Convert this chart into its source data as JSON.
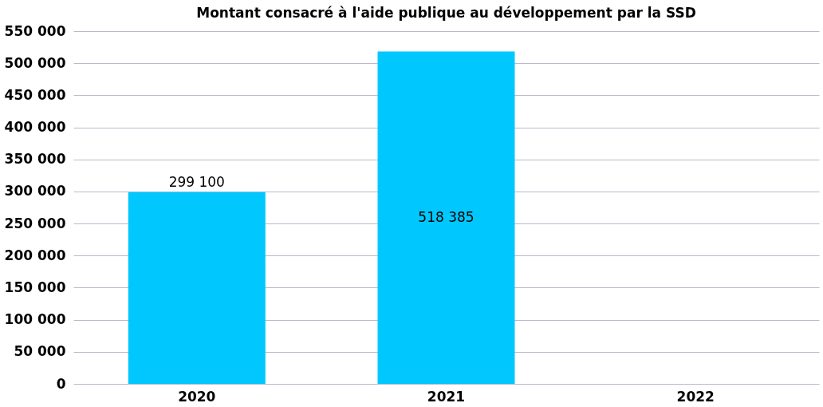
{
  "chart_data": {
    "type": "bar",
    "title": "Montant consacré à l'aide publique au développement par la SSD",
    "categories": [
      "2020",
      "2021",
      "2022"
    ],
    "values": [
      299100,
      518385,
      null
    ],
    "value_labels": [
      "299 100",
      "518 385",
      null
    ],
    "color": "#00c8ff",
    "ylim": [
      0,
      550000
    ],
    "yticks": [
      {
        "value": 0,
        "label": "0"
      },
      {
        "value": 50000,
        "label": "50 000"
      },
      {
        "value": 100000,
        "label": "100 000"
      },
      {
        "value": 150000,
        "label": "150 000"
      },
      {
        "value": 200000,
        "label": "200 000"
      },
      {
        "value": 250000,
        "label": "250 000"
      },
      {
        "value": 300000,
        "label": "300 000"
      },
      {
        "value": 350000,
        "label": "350 000"
      },
      {
        "value": 400000,
        "label": "400 000"
      },
      {
        "value": 450000,
        "label": "450 000"
      },
      {
        "value": 500000,
        "label": "500 000"
      },
      {
        "value": 550000,
        "label": "550 000"
      }
    ],
    "grid": "y"
  }
}
